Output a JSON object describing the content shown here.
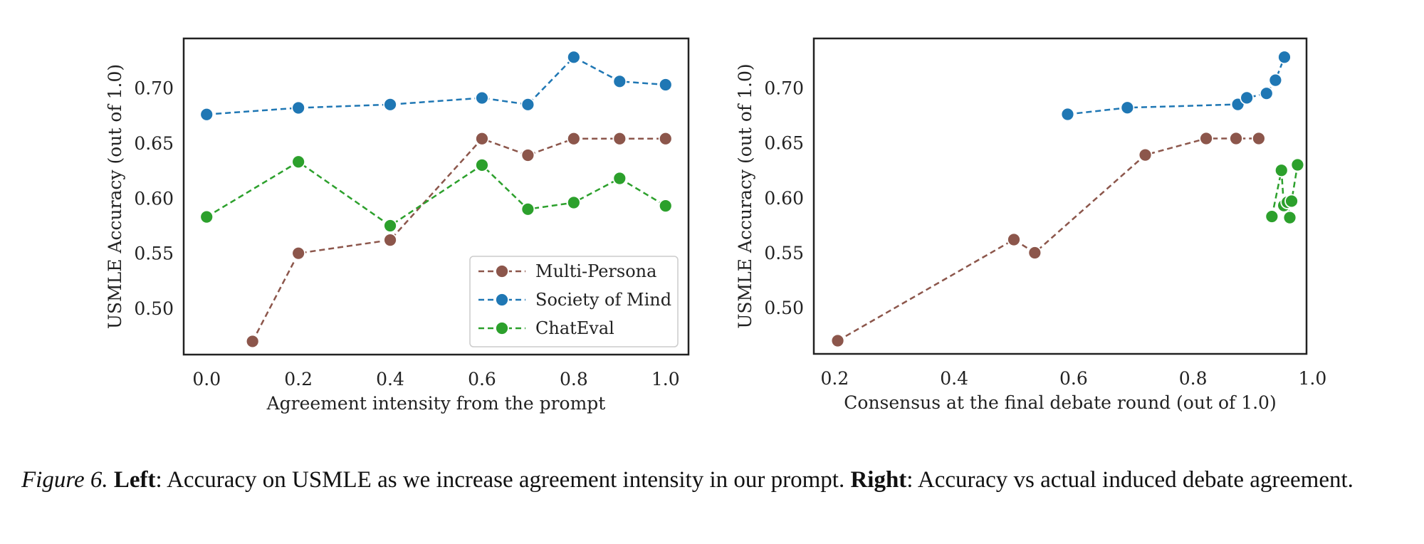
{
  "chart_data": [
    {
      "type": "line",
      "xlabel": "Agreement intensity from the prompt",
      "ylabel": "USMLE Accuracy (out of 1.0)",
      "xlim": [
        -0.05,
        1.05
      ],
      "ylim": [
        0.458,
        0.745
      ],
      "xticks": [
        0.0,
        0.2,
        0.4,
        0.6,
        0.8,
        1.0
      ],
      "xtick_labels": [
        "0.0",
        "0.2",
        "0.4",
        "0.6",
        "0.8",
        "1.0"
      ],
      "yticks": [
        0.5,
        0.55,
        0.6,
        0.65,
        0.7
      ],
      "ytick_labels": [
        "0.50",
        "0.55",
        "0.60",
        "0.65",
        "0.70"
      ],
      "grid": false,
      "legend_position": "lower-right",
      "series": [
        {
          "name": "Multi-Persona",
          "color": "#8c564b",
          "x": [
            0.1,
            0.2,
            0.4,
            0.6,
            0.7,
            0.8,
            0.9,
            1.0
          ],
          "y": [
            0.47,
            0.55,
            0.562,
            0.654,
            0.639,
            0.654,
            0.654,
            0.654
          ]
        },
        {
          "name": "Society of Mind",
          "color": "#1f77b4",
          "x": [
            0.0,
            0.2,
            0.4,
            0.6,
            0.7,
            0.8,
            0.9,
            1.0
          ],
          "y": [
            0.676,
            0.682,
            0.685,
            0.691,
            0.685,
            0.728,
            0.706,
            0.703
          ]
        },
        {
          "name": "ChatEval",
          "color": "#2ca02c",
          "x": [
            0.0,
            0.2,
            0.4,
            0.6,
            0.7,
            0.8,
            0.9,
            1.0
          ],
          "y": [
            0.583,
            0.633,
            0.575,
            0.63,
            0.59,
            0.596,
            0.618,
            0.593
          ]
        }
      ]
    },
    {
      "type": "line",
      "xlabel": "Consensus at the final debate round (out of 1.0)",
      "ylabel": "USMLE Accuracy (out of 1.0)",
      "xlim": [
        0.165,
        0.99
      ],
      "ylim": [
        0.458,
        0.745
      ],
      "xticks": [
        0.2,
        0.4,
        0.6,
        0.8,
        1.0
      ],
      "xtick_labels": [
        "0.2",
        "0.4",
        "0.6",
        "0.8",
        "1.0"
      ],
      "yticks": [
        0.5,
        0.55,
        0.6,
        0.65,
        0.7
      ],
      "ytick_labels": [
        "0.50",
        "0.55",
        "0.60",
        "0.65",
        "0.70"
      ],
      "grid": false,
      "series": [
        {
          "name": "Multi-Persona",
          "color": "#8c564b",
          "x": [
            0.205,
            0.5,
            0.535,
            0.72,
            0.822,
            0.872,
            0.91
          ],
          "y": [
            0.47,
            0.562,
            0.55,
            0.639,
            0.654,
            0.654,
            0.654
          ]
        },
        {
          "name": "Society of Mind",
          "color": "#1f77b4",
          "x": [
            0.59,
            0.69,
            0.875,
            0.89,
            0.923,
            0.938,
            0.953
          ],
          "y": [
            0.676,
            0.682,
            0.685,
            0.691,
            0.695,
            0.707,
            0.728
          ]
        },
        {
          "name": "ChatEval",
          "color": "#2ca02c",
          "x": [
            0.932,
            0.948,
            0.952,
            0.962,
            0.958,
            0.965,
            0.975
          ],
          "y": [
            0.583,
            0.625,
            0.593,
            0.582,
            0.596,
            0.597,
            0.63
          ]
        }
      ]
    }
  ],
  "caption": {
    "figure_label": "Figure 6.",
    "left_label": "Left",
    "left_text": ":  Accuracy on USMLE as we increase agreement intensity in our prompt.  ",
    "right_label": "Right",
    "right_text": ":  Accuracy vs actual induced debate agreement."
  }
}
